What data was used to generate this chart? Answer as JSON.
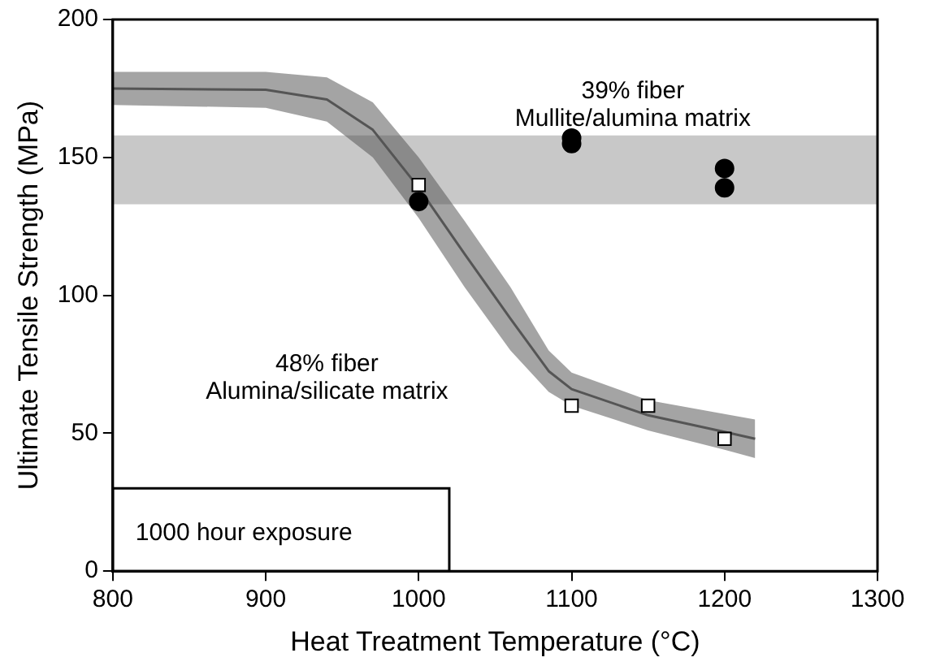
{
  "chart_data": {
    "type": "scatter",
    "xlabel": "Heat Treatment Temperature (°C)",
    "ylabel": "Ultimate Tensile Strength (MPa)",
    "xlim": [
      800,
      1300
    ],
    "xticks": [
      800,
      900,
      1000,
      1100,
      1200,
      1300
    ],
    "ylim": [
      0,
      200
    ],
    "yticks": [
      0,
      50,
      100,
      150,
      200
    ],
    "grid": false,
    "legend": false,
    "series": [
      {
        "type": "line",
        "color": "#555555",
        "marker": "none",
        "x": [
          800,
          900,
          940,
          970,
          1000,
          1030,
          1060,
          1085,
          1100,
          1150,
          1200,
          1220
        ],
        "values": [
          175,
          174.5,
          171,
          160,
          139,
          115,
          91.5,
          72.5,
          66,
          56.5,
          50.5,
          48
        ],
        "lower": [
          169,
          168,
          163,
          150,
          128,
          103,
          80,
          65,
          60,
          51,
          44,
          41
        ],
        "upper": [
          181,
          181,
          179,
          170,
          150,
          127,
          103,
          80,
          72,
          62,
          57,
          55
        ]
      },
      {
        "color": "#000000",
        "marker": "circle",
        "x": [
          1000,
          1100,
          1100,
          1200,
          1200
        ],
        "values": [
          134,
          157,
          155,
          146,
          139
        ]
      },
      {
        "color": "#000000",
        "marker": "square",
        "x": [
          1000,
          1100,
          1150,
          1200
        ],
        "values": [
          140,
          60,
          60,
          48
        ]
      }
    ],
    "bands": [
      {
        "axis": "y",
        "from": 133,
        "to": 158,
        "color": "#c8c8c8"
      }
    ],
    "annotations": [
      "39% fiber",
      "Mullite/alumina matrix",
      "48% fiber",
      "Alumina/silicate matrix",
      "1000 hour exposure"
    ]
  }
}
